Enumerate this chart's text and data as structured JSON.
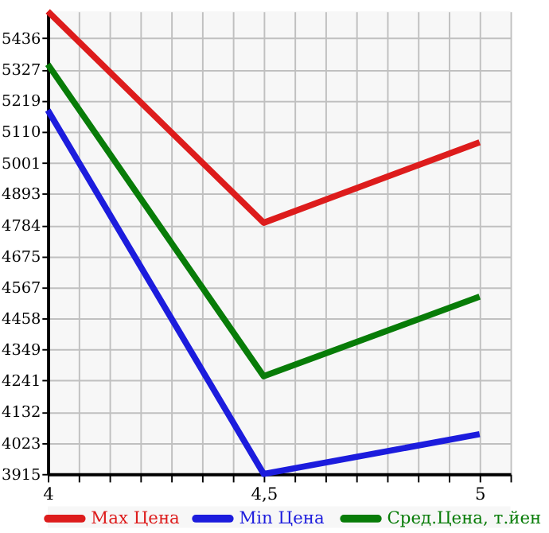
{
  "chart_data": {
    "type": "line",
    "x": [
      4,
      4.5,
      5
    ],
    "series": [
      {
        "name": "Max Цена",
        "color": "#dd1c1c",
        "values": [
          5530,
          4792,
          5073
        ]
      },
      {
        "name": "Min Цена",
        "color": "#1c1cdd",
        "values": [
          5185,
          3915,
          4054
        ]
      },
      {
        "name": "Сред.Цена, т.йен",
        "color": "#087c08",
        "values": [
          5345,
          4256,
          4534
        ]
      }
    ],
    "xlim": [
      4,
      5.0714
    ],
    "xticks": [
      4,
      {
        "value": 4.0714,
        "label": null
      },
      {
        "value": 4.1429,
        "label": null
      },
      {
        "value": 4.2143,
        "label": null
      },
      {
        "value": 4.2857,
        "label": null
      },
      {
        "value": 4.3571,
        "label": null
      },
      {
        "value": 4.4286,
        "label": null
      },
      {
        "value": 4.5,
        "label": "4,5"
      },
      {
        "value": 4.5714,
        "label": null
      },
      {
        "value": 4.6429,
        "label": null
      },
      {
        "value": 4.7143,
        "label": null
      },
      {
        "value": 4.7857,
        "label": null
      },
      {
        "value": 4.8571,
        "label": null
      },
      {
        "value": 4.9286,
        "label": null
      },
      5,
      {
        "value": 5.0714,
        "label": null
      }
    ],
    "ylim": [
      3915,
      5530
    ],
    "yticks": [
      3915,
      4023,
      4132,
      4241,
      4349,
      4458,
      4567,
      4675,
      4784,
      4893,
      5001,
      5110,
      5219,
      5327,
      5436
    ],
    "grid": true,
    "legend": "bottom",
    "marker": "none",
    "line_style": "solid"
  }
}
